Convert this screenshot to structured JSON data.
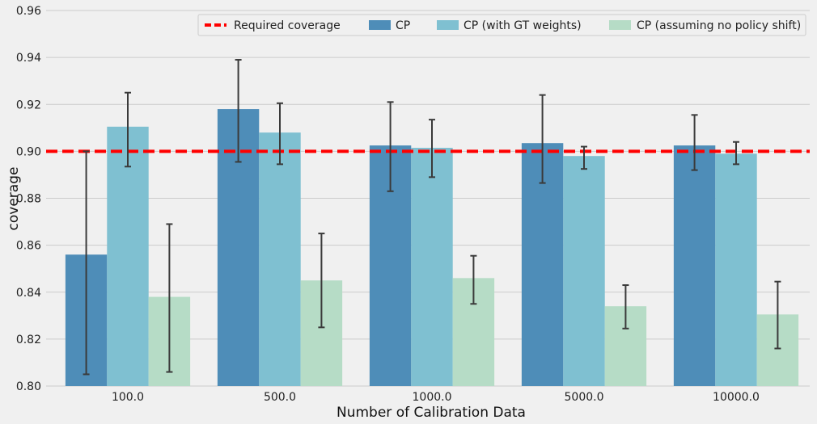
{
  "chart_data": {
    "type": "bar",
    "xlabel": "Number of Calibration Data",
    "ylabel": "coverage",
    "categories": [
      "100.0",
      "500.0",
      "1000.0",
      "5000.0",
      "10000.0"
    ],
    "ylim": [
      0.8,
      0.96
    ],
    "yticks": [
      "0.80",
      "0.82",
      "0.84",
      "0.86",
      "0.88",
      "0.90",
      "0.92",
      "0.94",
      "0.96"
    ],
    "grid": "horizontal",
    "legend_position": "top",
    "reference_line": {
      "name": "Required coverage",
      "value": 0.9,
      "color": "#ff0000"
    },
    "series": [
      {
        "name": "CP",
        "color": "#4e8db8",
        "values": [
          0.856,
          0.918,
          0.9025,
          0.9035,
          0.9025
        ],
        "err_low": [
          0.805,
          0.8955,
          0.883,
          0.8865,
          0.892
        ],
        "err_high": [
          0.9,
          0.939,
          0.921,
          0.924,
          0.9155
        ]
      },
      {
        "name": "CP (with GT weights)",
        "color": "#7fc0d1",
        "values": [
          0.9105,
          0.908,
          0.9015,
          0.898,
          0.899
        ],
        "err_low": [
          0.8935,
          0.8945,
          0.889,
          0.8925,
          0.8945
        ],
        "err_high": [
          0.925,
          0.9205,
          0.9135,
          0.902,
          0.904
        ]
      },
      {
        "name": "CP (assuming no policy shift)",
        "color": "#b6dcc6",
        "values": [
          0.838,
          0.845,
          0.846,
          0.834,
          0.8305
        ],
        "err_low": [
          0.806,
          0.825,
          0.835,
          0.8245,
          0.816
        ],
        "err_high": [
          0.869,
          0.865,
          0.8555,
          0.843,
          0.8445
        ]
      }
    ]
  }
}
